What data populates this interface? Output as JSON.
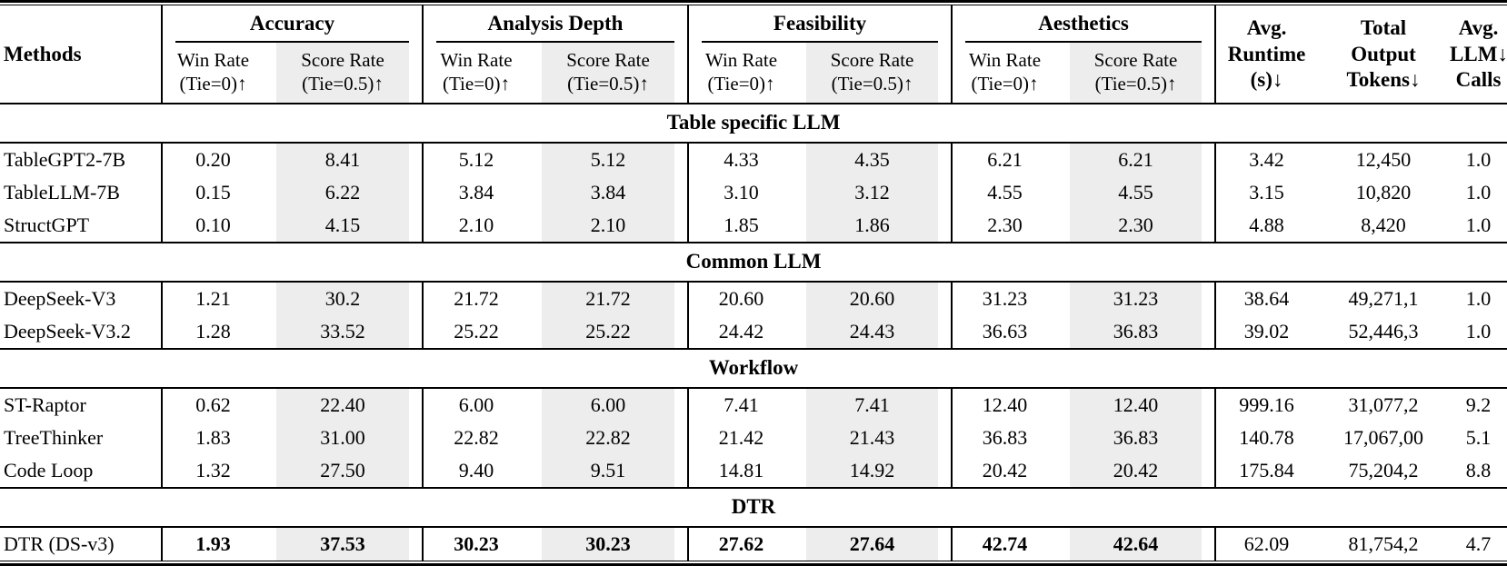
{
  "table": {
    "methods_header": "Methods",
    "groups": [
      {
        "label": "Accuracy",
        "win": "Win Rate\n(Tie=0)↑",
        "score": "Score Rate\n(Tie=0.5)↑"
      },
      {
        "label": "Analysis Depth",
        "win": "Win Rate\n(Tie=0)↑",
        "score": "Score Rate\n(Tie=0.5)↑"
      },
      {
        "label": "Feasibility",
        "win": "Win Rate\n(Tie=0)↑",
        "score": "Score Rate\n(Tie=0.5)↑"
      },
      {
        "label": "Aesthetics",
        "win": "Win Rate\n(Tie=0)↑",
        "score": "Score Rate\n(Tie=0.5)↑"
      }
    ],
    "right_headers": [
      {
        "label": "Avg.\nRuntime\n(s)↓"
      },
      {
        "label": "Total\nOutput\nTokens↓"
      },
      {
        "label": "Avg.\nLLM↓\nCalls"
      }
    ],
    "sections": [
      {
        "title": "Table specific LLM",
        "rows": [
          {
            "method": "TableGPT2-7B",
            "bold": false,
            "values": [
              "0.20",
              "8.41",
              "5.12",
              "5.12",
              "4.33",
              "4.35",
              "6.21",
              "6.21",
              "3.42",
              "12,450",
              "1.0"
            ]
          },
          {
            "method": "TableLLM-7B",
            "bold": false,
            "values": [
              "0.15",
              "6.22",
              "3.84",
              "3.84",
              "3.10",
              "3.12",
              "4.55",
              "4.55",
              "3.15",
              "10,820",
              "1.0"
            ]
          },
          {
            "method": "StructGPT",
            "bold": false,
            "values": [
              "0.10",
              "4.15",
              "2.10",
              "2.10",
              "1.85",
              "1.86",
              "2.30",
              "2.30",
              "4.88",
              "8,420",
              "1.0"
            ]
          }
        ]
      },
      {
        "title": "Common LLM",
        "rows": [
          {
            "method": "DeepSeek-V3",
            "bold": false,
            "values": [
              "1.21",
              "30.2",
              "21.72",
              "21.72",
              "20.60",
              "20.60",
              "31.23",
              "31.23",
              "38.64",
              "49,271,1",
              "1.0"
            ]
          },
          {
            "method": "DeepSeek-V3.2",
            "bold": false,
            "values": [
              "1.28",
              "33.52",
              "25.22",
              "25.22",
              "24.42",
              "24.43",
              "36.63",
              "36.83",
              "39.02",
              "52,446,3",
              "1.0"
            ]
          }
        ]
      },
      {
        "title": "Workflow",
        "rows": [
          {
            "method": "ST-Raptor",
            "bold": false,
            "values": [
              "0.62",
              "22.40",
              "6.00",
              "6.00",
              "7.41",
              "7.41",
              "12.40",
              "12.40",
              "999.16",
              "31,077,2",
              "9.2"
            ]
          },
          {
            "method": "TreeThinker",
            "bold": false,
            "values": [
              "1.83",
              "31.00",
              "22.82",
              "22.82",
              "21.42",
              "21.43",
              "36.83",
              "36.83",
              "140.78",
              "17,067,00",
              "5.1"
            ]
          },
          {
            "method": "Code Loop",
            "bold": false,
            "values": [
              "1.32",
              "27.50",
              "9.40",
              "9.51",
              "14.81",
              "14.92",
              "20.42",
              "20.42",
              "175.84",
              "75,204,2",
              "8.8"
            ]
          }
        ]
      },
      {
        "title": "DTR",
        "rows": [
          {
            "method": "DTR (DS-v3)",
            "bold": true,
            "bold_value_count": 8,
            "values": [
              "1.93",
              "37.53",
              "30.23",
              "30.23",
              "27.62",
              "27.64",
              "42.74",
              "42.64",
              "62.09",
              "81,754,2",
              "4.7"
            ]
          }
        ]
      }
    ],
    "colors": {
      "score_column_bg": "#ededed",
      "rule": "#000000",
      "text": "#000000",
      "background": "#ffffff"
    }
  }
}
